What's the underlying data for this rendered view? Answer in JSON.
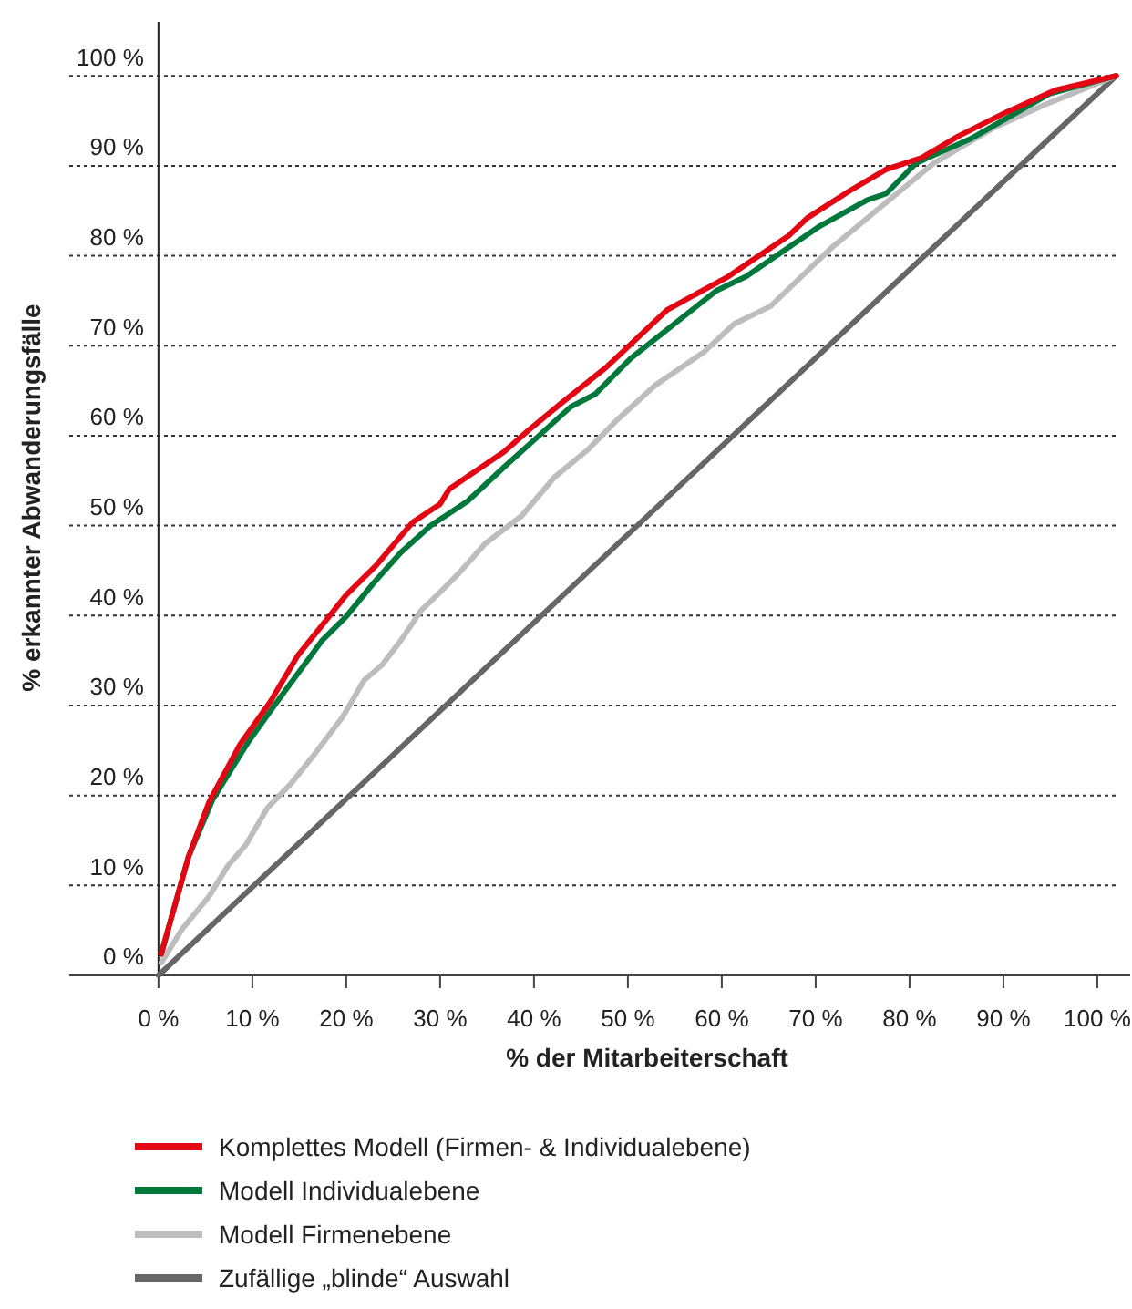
{
  "chart_data": {
    "type": "line",
    "xlabel": "% der Mitarbeiterschaft",
    "ylabel": "% erkannter Abwanderungsfälle",
    "xlim": [
      -9.5,
      103.5
    ],
    "ylim": [
      0,
      106
    ],
    "xticks": [
      {
        "value": 0,
        "label": "0 %"
      },
      {
        "value": 10,
        "label": "10 %"
      },
      {
        "value": 20,
        "label": "20 %"
      },
      {
        "value": 30,
        "label": "30 %"
      },
      {
        "value": 40,
        "label": "40 %"
      },
      {
        "value": 50,
        "label": "50 %"
      },
      {
        "value": 60,
        "label": "60 %"
      },
      {
        "value": 70,
        "label": "70 %"
      },
      {
        "value": 80,
        "label": "80 %"
      },
      {
        "value": 90,
        "label": "90 %"
      },
      {
        "value": 100,
        "label": "100 %"
      }
    ],
    "yticks": [
      {
        "value": 0,
        "label": "0 %"
      },
      {
        "value": 10,
        "label": "10 %"
      },
      {
        "value": 20,
        "label": "20 %"
      },
      {
        "value": 30,
        "label": "30 %"
      },
      {
        "value": 40,
        "label": "40 %"
      },
      {
        "value": 50,
        "label": "50 %"
      },
      {
        "value": 60,
        "label": "60 %"
      },
      {
        "value": 70,
        "label": "70 %"
      },
      {
        "value": 80,
        "label": "80 %"
      },
      {
        "value": 90,
        "label": "90 %"
      },
      {
        "value": 100,
        "label": "100 %"
      }
    ],
    "grid": "y",
    "legend": "bottom",
    "marker": "none",
    "line_style": "solid",
    "series": [
      {
        "name": "Komplettes Modell (Firmen- & Individualebene)",
        "color": "#e30613",
        "x": [
          0.3,
          3.2,
          5.4,
          8.7,
          11.9,
          14.8,
          17.1,
          20,
          23.2,
          27.1,
          30,
          31,
          36.8,
          39.3,
          42.9,
          47.7,
          54.2,
          60.7,
          67.1,
          69.1,
          73.6,
          77.5,
          81.3,
          85.2,
          90.4,
          95.5,
          102
        ],
        "values": [
          2.4,
          13.2,
          19.3,
          25.7,
          30.4,
          35.5,
          38.5,
          42.3,
          45.6,
          50.4,
          52.4,
          54.1,
          58.2,
          60.5,
          63.6,
          67.6,
          74,
          77.7,
          82.2,
          84.2,
          87.2,
          89.6,
          90.9,
          93.3,
          96,
          98.4,
          100
        ]
      },
      {
        "name": "Modell Individualebene",
        "color": "#00783c",
        "x": [
          0.3,
          3.2,
          5.8,
          9.6,
          12.2,
          14.8,
          17.4,
          20,
          22.9,
          25.8,
          29,
          32.9,
          36.8,
          40,
          43.9,
          46.5,
          50.3,
          59.4,
          62.6,
          70.3,
          75.5,
          77.5,
          80.7,
          86.5,
          94.9,
          102
        ],
        "values": [
          2.4,
          13.2,
          19.6,
          26,
          29.8,
          33.5,
          37.2,
          39.9,
          43.6,
          47,
          50,
          52.7,
          56.5,
          59.5,
          63.2,
          64.6,
          68.6,
          76.1,
          77.7,
          83.2,
          86.2,
          86.9,
          90.3,
          93,
          98,
          100
        ]
      },
      {
        "name": "Modell Firmenebene",
        "color": "#bdbdbd",
        "x": [
          0.3,
          2.5,
          5.4,
          7.4,
          9.3,
          11.6,
          14.1,
          16.7,
          19.6,
          21.9,
          23.8,
          25.8,
          28,
          30,
          31.9,
          34.8,
          38.7,
          42.2,
          45.8,
          49,
          52.9,
          58.1,
          61.3,
          65.2,
          71.6,
          76.2,
          82.6,
          89.1,
          94.2,
          102
        ],
        "values": [
          1.4,
          5.1,
          8.8,
          12.2,
          14.5,
          18.6,
          21.3,
          24.7,
          28.7,
          32.8,
          34.5,
          37.2,
          40.6,
          42.6,
          44.6,
          48,
          51.1,
          55.4,
          58.5,
          61.9,
          65.6,
          69.3,
          72.4,
          74.4,
          80.8,
          84.8,
          90.3,
          94.3,
          96.7,
          100
        ]
      },
      {
        "name": "Zufällige „blinde“ Auswahl",
        "color": "#666666",
        "x": [
          0,
          102
        ],
        "values": [
          0,
          100
        ]
      }
    ]
  }
}
